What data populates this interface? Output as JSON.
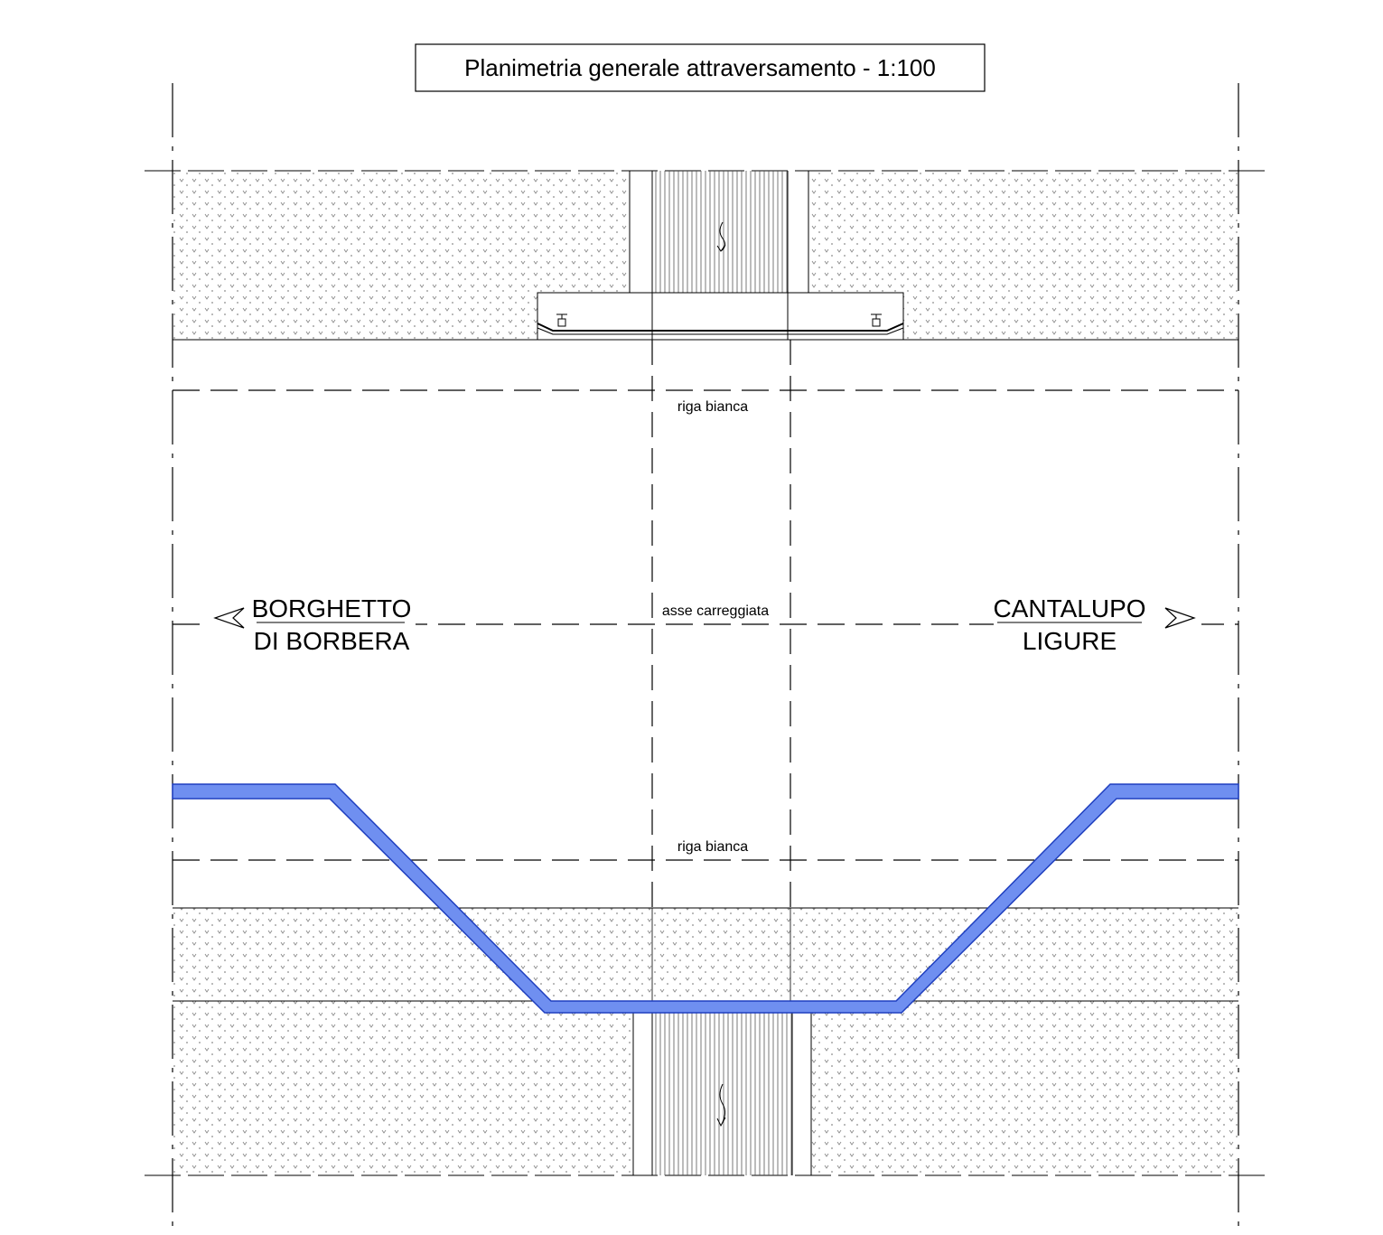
{
  "title": "Planimetria generale attraversamento - 1:100",
  "labels": {
    "riga_top": "riga bianca",
    "asse": "asse carreggiata",
    "riga_bottom": "riga bianca",
    "left_dest_line1": "BORGHETTO",
    "left_dest_line2": "DI BORBERA",
    "right_dest_line1": "CANTALUPO",
    "right_dest_line2": "LIGURE"
  },
  "colors": {
    "pipeline_fill": "#6f8ff0",
    "pipeline_stroke": "#1f3fbf",
    "line": "#000000",
    "hatch_dot": "#888888"
  }
}
